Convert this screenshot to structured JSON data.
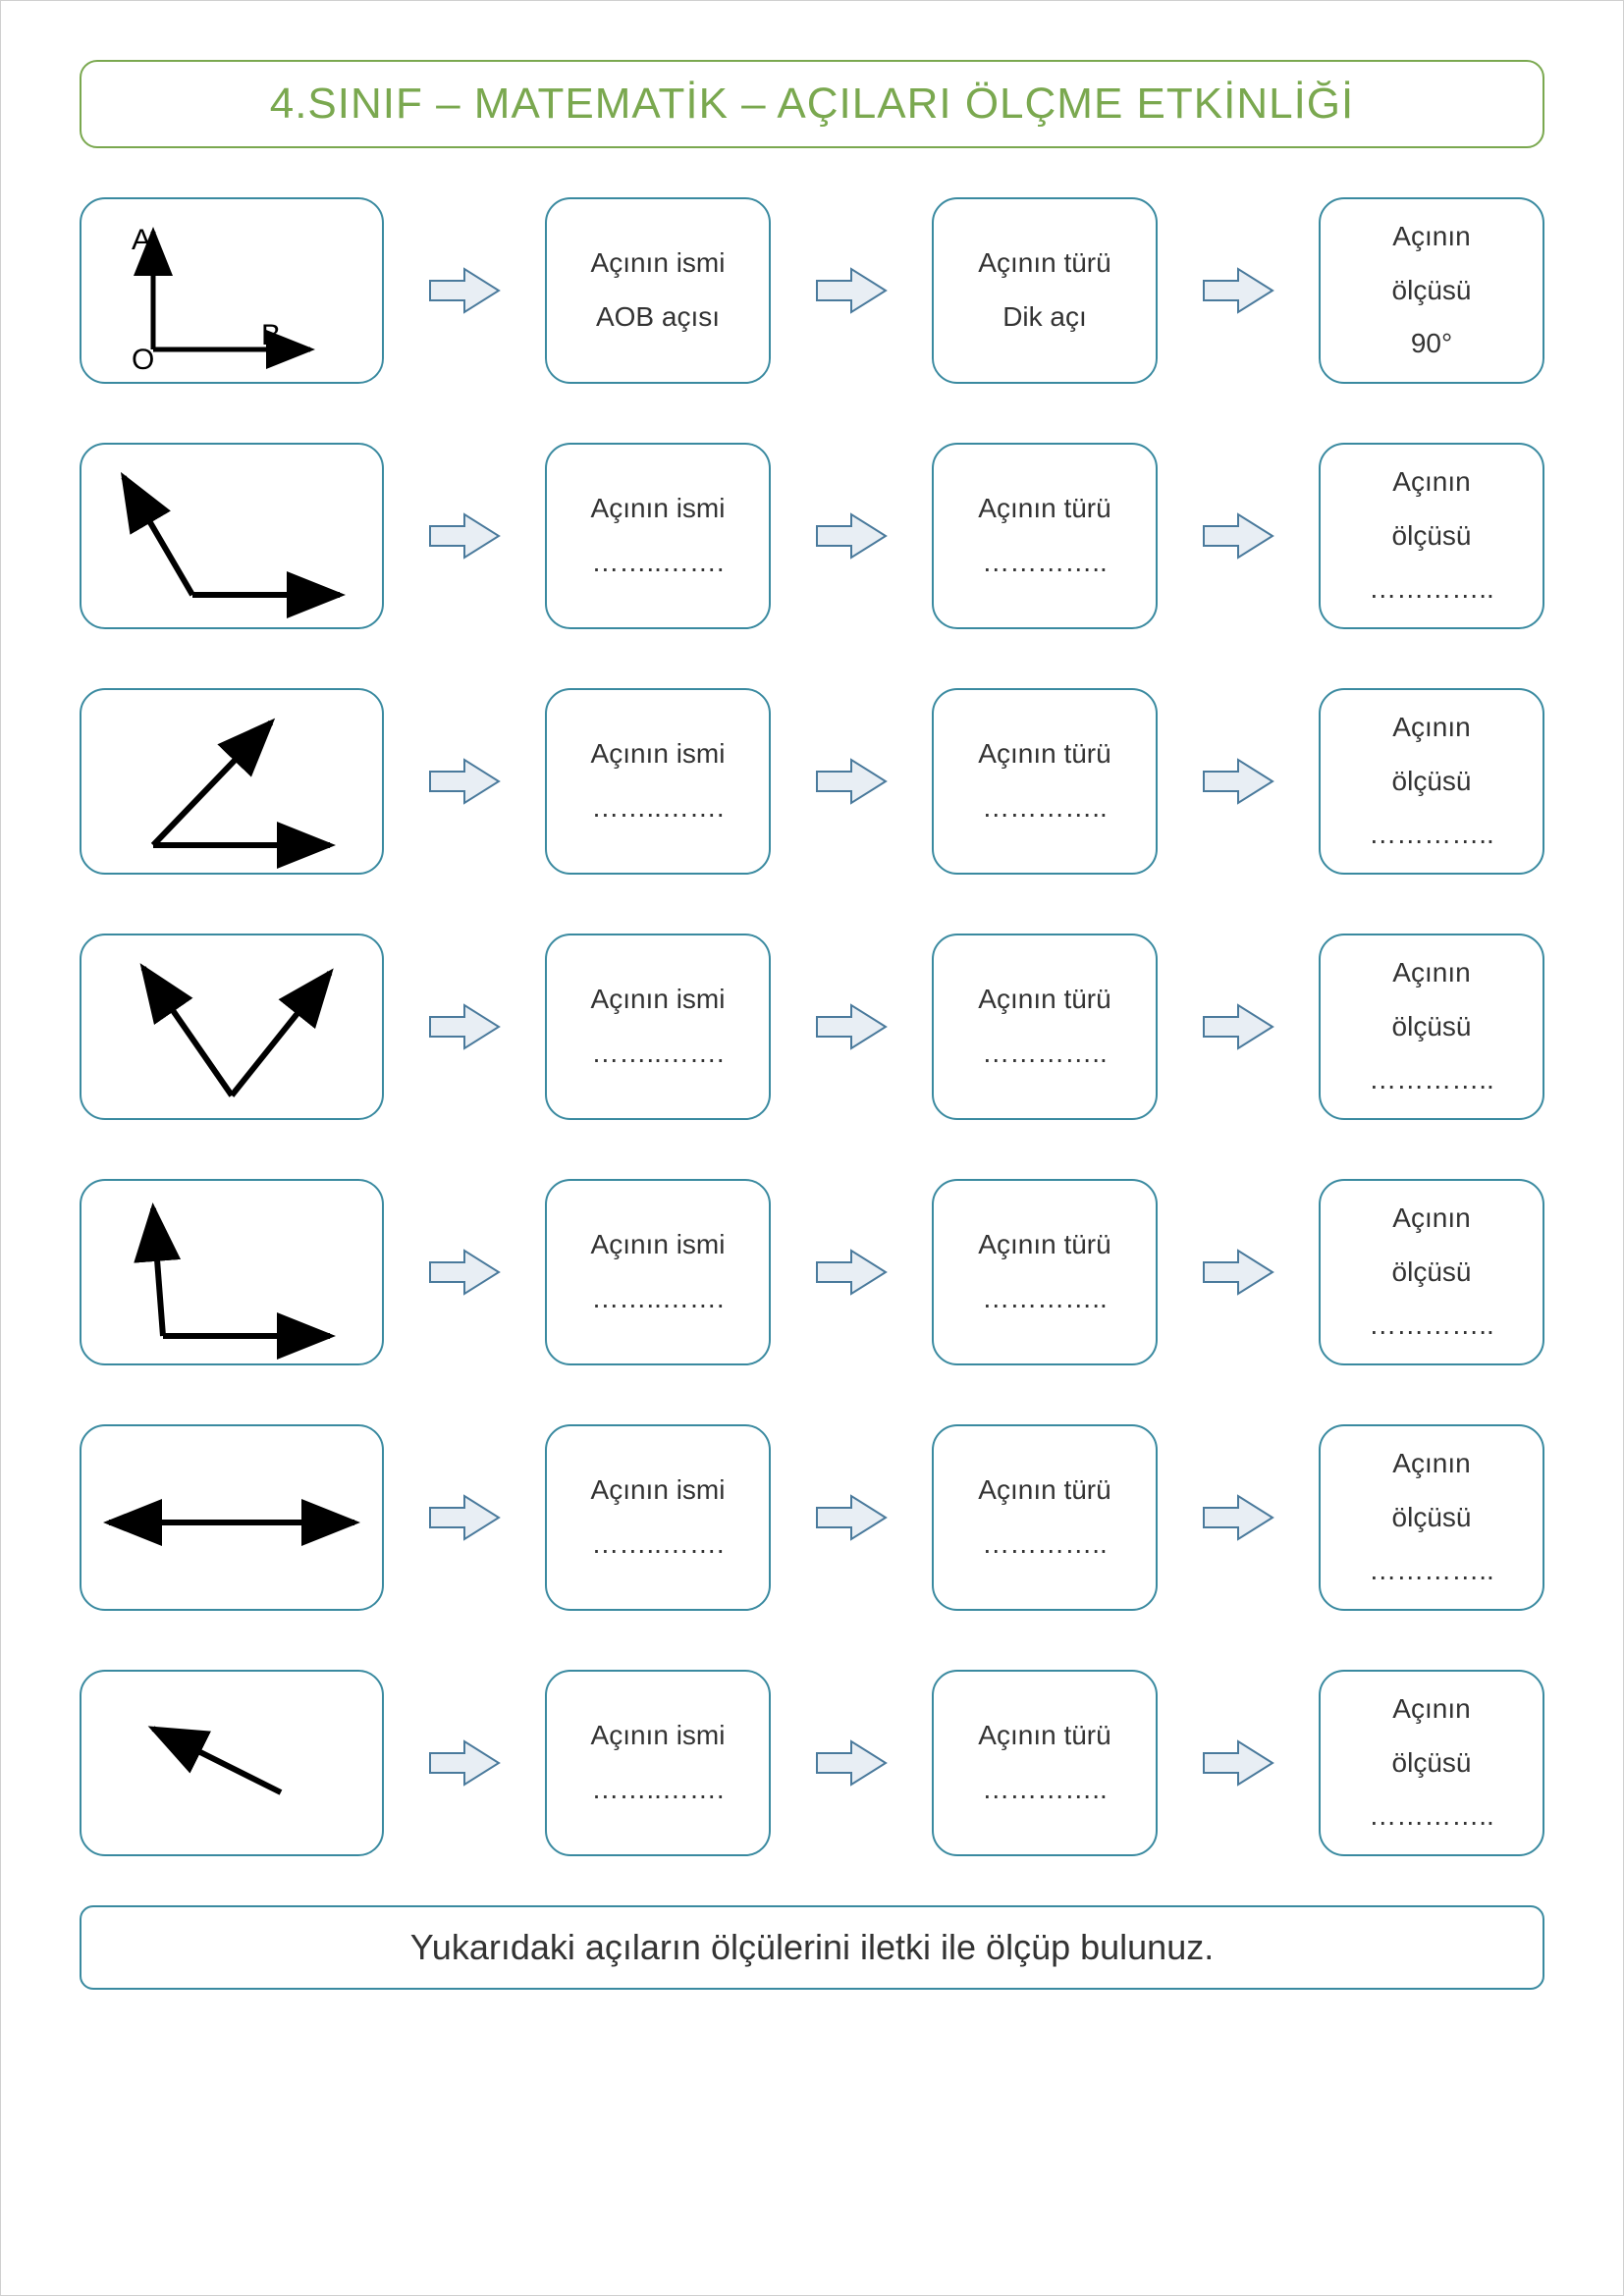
{
  "colors": {
    "title_border": "#7aa84f",
    "title_text": "#7aa84f",
    "box_border": "#3a8aa0",
    "arrow_stroke": "#4a7a9c",
    "arrow_fill": "#e8eef4",
    "angle_stroke": "#000000",
    "text": "#333333",
    "background": "#ffffff"
  },
  "title": "4.SINIF – MATEMATİK – AÇILARI ÖLÇME ETKİNLİĞİ",
  "footer": "Yukarıdaki açıların ölçülerini iletki ile ölçüp bulunuz.",
  "labels": {
    "name": "Açının ismi",
    "type": "Açının türü",
    "measure_line1": "Açının",
    "measure_line2": "ölçüsü"
  },
  "rows": [
    {
      "angle_svg": "right",
      "name": "AOB açısı",
      "type": "Dik açı",
      "measure": "90°",
      "letters": {
        "A": "A",
        "O": "O",
        "B": "B"
      }
    },
    {
      "angle_svg": "obtuse_up_left",
      "name": "……..…….",
      "type": "…………..",
      "measure": "………….."
    },
    {
      "angle_svg": "acute_up_right",
      "name": "……..…….",
      "type": "…………..",
      "measure": "………….."
    },
    {
      "angle_svg": "v_shape",
      "name": "……..…….",
      "type": "…………..",
      "measure": "………….."
    },
    {
      "angle_svg": "near_right",
      "name": "……..…….",
      "type": "…………..",
      "measure": "………….."
    },
    {
      "angle_svg": "straight",
      "name": "……..…….",
      "type": "…………..",
      "measure": "………….."
    },
    {
      "angle_svg": "small_ray",
      "name": "……..…….",
      "type": "…………..",
      "measure": "………….."
    }
  ]
}
